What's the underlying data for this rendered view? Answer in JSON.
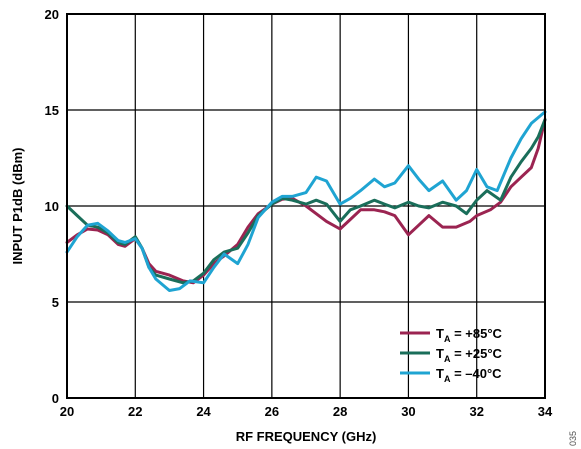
{
  "figure_id": "035",
  "chart_data": {
    "type": "line",
    "title": "",
    "xlabel": "RF FREQUENCY (GHz)",
    "ylabel": "INPUT P1dB (dBm)",
    "xlim": [
      20,
      34
    ],
    "ylim": [
      0,
      20
    ],
    "xticks": [
      20,
      22,
      24,
      26,
      28,
      30,
      32,
      34
    ],
    "yticks": [
      0,
      5,
      10,
      15,
      20
    ],
    "grid": true,
    "legend_position": "bottom-right",
    "series": [
      {
        "name": "TA = +85°C",
        "legend": {
          "prefix": "T",
          "sub": "A",
          "suffix": " = +85°C"
        },
        "color": "#9b2451",
        "points": [
          [
            20,
            8.1
          ],
          [
            20.3,
            8.5
          ],
          [
            20.6,
            8.8
          ],
          [
            20.9,
            8.75
          ],
          [
            21.2,
            8.5
          ],
          [
            21.5,
            8.0
          ],
          [
            21.7,
            7.9
          ],
          [
            22.0,
            8.3
          ],
          [
            22.2,
            7.8
          ],
          [
            22.4,
            7.0
          ],
          [
            22.6,
            6.6
          ],
          [
            23.0,
            6.4
          ],
          [
            23.4,
            6.1
          ],
          [
            23.7,
            6.0
          ],
          [
            24.0,
            6.4
          ],
          [
            24.3,
            7.0
          ],
          [
            24.6,
            7.4
          ],
          [
            25.0,
            8.0
          ],
          [
            25.3,
            8.9
          ],
          [
            25.6,
            9.6
          ],
          [
            26.0,
            10.1
          ],
          [
            26.3,
            10.35
          ],
          [
            26.6,
            10.4
          ],
          [
            27.0,
            10.0
          ],
          [
            27.3,
            9.6
          ],
          [
            27.6,
            9.2
          ],
          [
            28.0,
            8.8
          ],
          [
            28.3,
            9.3
          ],
          [
            28.6,
            9.8
          ],
          [
            29.0,
            9.8
          ],
          [
            29.3,
            9.7
          ],
          [
            29.6,
            9.5
          ],
          [
            30.0,
            8.5
          ],
          [
            30.3,
            9.0
          ],
          [
            30.6,
            9.5
          ],
          [
            31.0,
            8.9
          ],
          [
            31.4,
            8.9
          ],
          [
            31.8,
            9.2
          ],
          [
            32.0,
            9.5
          ],
          [
            32.4,
            9.8
          ],
          [
            32.7,
            10.2
          ],
          [
            33.0,
            11.0
          ],
          [
            33.3,
            11.5
          ],
          [
            33.6,
            12.0
          ],
          [
            33.8,
            13.0
          ],
          [
            34.0,
            14.5
          ]
        ]
      },
      {
        "name": "TA = +25°C",
        "legend": {
          "prefix": "T",
          "sub": "A",
          "suffix": " = +25°C"
        },
        "color": "#1a6e5a",
        "points": [
          [
            20,
            10.0
          ],
          [
            20.3,
            9.5
          ],
          [
            20.6,
            9.0
          ],
          [
            20.9,
            8.9
          ],
          [
            21.2,
            8.6
          ],
          [
            21.5,
            8.1
          ],
          [
            21.7,
            8.0
          ],
          [
            22.0,
            8.4
          ],
          [
            22.2,
            7.8
          ],
          [
            22.4,
            6.8
          ],
          [
            22.6,
            6.4
          ],
          [
            23.0,
            6.2
          ],
          [
            23.4,
            6.0
          ],
          [
            23.7,
            6.1
          ],
          [
            24.0,
            6.5
          ],
          [
            24.3,
            7.2
          ],
          [
            24.6,
            7.6
          ],
          [
            25.0,
            7.8
          ],
          [
            25.3,
            8.6
          ],
          [
            25.6,
            9.5
          ],
          [
            26.0,
            10.1
          ],
          [
            26.3,
            10.4
          ],
          [
            26.6,
            10.3
          ],
          [
            27.0,
            10.1
          ],
          [
            27.3,
            10.3
          ],
          [
            27.6,
            10.1
          ],
          [
            28.0,
            9.2
          ],
          [
            28.3,
            9.8
          ],
          [
            28.6,
            10.0
          ],
          [
            29.0,
            10.3
          ],
          [
            29.3,
            10.1
          ],
          [
            29.6,
            9.9
          ],
          [
            30.0,
            10.2
          ],
          [
            30.3,
            10.0
          ],
          [
            30.6,
            9.9
          ],
          [
            31.0,
            10.2
          ],
          [
            31.4,
            10.0
          ],
          [
            31.7,
            9.6
          ],
          [
            32.0,
            10.3
          ],
          [
            32.3,
            10.8
          ],
          [
            32.7,
            10.3
          ],
          [
            33.0,
            11.5
          ],
          [
            33.3,
            12.3
          ],
          [
            33.6,
            13.0
          ],
          [
            33.8,
            13.6
          ],
          [
            34.0,
            14.5
          ]
        ]
      },
      {
        "name": "TA = –40°C",
        "legend": {
          "prefix": "T",
          "sub": "A",
          "suffix": " = –40°C"
        },
        "color": "#1fa4d2",
        "points": [
          [
            20,
            7.6
          ],
          [
            20.3,
            8.4
          ],
          [
            20.6,
            9.0
          ],
          [
            20.9,
            9.1
          ],
          [
            21.2,
            8.7
          ],
          [
            21.5,
            8.2
          ],
          [
            21.7,
            8.1
          ],
          [
            22.0,
            8.3
          ],
          [
            22.2,
            7.8
          ],
          [
            22.4,
            6.8
          ],
          [
            22.6,
            6.2
          ],
          [
            23.0,
            5.6
          ],
          [
            23.3,
            5.7
          ],
          [
            23.6,
            6.1
          ],
          [
            24.0,
            6.0
          ],
          [
            24.3,
            6.8
          ],
          [
            24.6,
            7.5
          ],
          [
            25.0,
            7.0
          ],
          [
            25.3,
            8.0
          ],
          [
            25.6,
            9.4
          ],
          [
            26.0,
            10.2
          ],
          [
            26.3,
            10.5
          ],
          [
            26.6,
            10.5
          ],
          [
            27.0,
            10.7
          ],
          [
            27.3,
            11.5
          ],
          [
            27.6,
            11.3
          ],
          [
            28.0,
            10.1
          ],
          [
            28.3,
            10.4
          ],
          [
            28.6,
            10.8
          ],
          [
            29.0,
            11.4
          ],
          [
            29.3,
            11.0
          ],
          [
            29.6,
            11.2
          ],
          [
            30.0,
            12.1
          ],
          [
            30.3,
            11.4
          ],
          [
            30.6,
            10.8
          ],
          [
            31.0,
            11.3
          ],
          [
            31.4,
            10.3
          ],
          [
            31.7,
            10.8
          ],
          [
            32.0,
            11.9
          ],
          [
            32.3,
            11.0
          ],
          [
            32.6,
            10.8
          ],
          [
            33.0,
            12.5
          ],
          [
            33.3,
            13.5
          ],
          [
            33.6,
            14.3
          ],
          [
            34.0,
            14.9
          ]
        ]
      }
    ]
  }
}
